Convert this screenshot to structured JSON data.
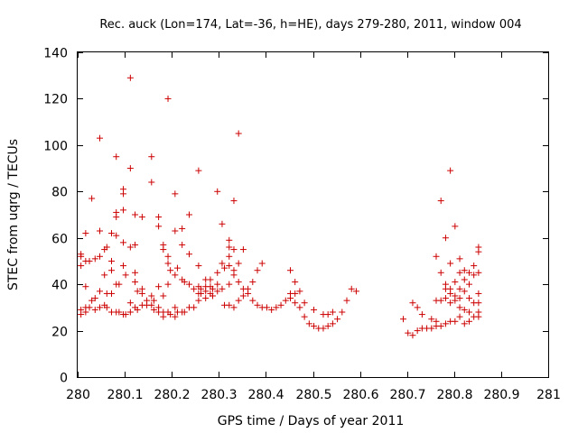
{
  "chart_data": {
    "type": "scatter",
    "title": "Rec. auck (Lon=174, Lat=-36, h=HE), days 279-280, 2011, window 004",
    "xlabel": "GPS time / Days of year 2011",
    "ylabel": "STEC from uqrg / TECUs",
    "xlim": [
      280,
      281
    ],
    "ylim": [
      0,
      140
    ],
    "grid": false,
    "legend": "none",
    "marker": "plus",
    "color": "#cc0000",
    "x_ticks": [
      280,
      280.1,
      280.2,
      280.3,
      280.4,
      280.5,
      280.6,
      280.7,
      280.8,
      280.9,
      281
    ],
    "x_tick_labels": [
      "280",
      "280.1",
      "280.2",
      "280.3",
      "280.4",
      "280.5",
      "280.6",
      "280.7",
      "280.8",
      "280.9",
      "281"
    ],
    "y_ticks": [
      0,
      20,
      40,
      60,
      80,
      100,
      120,
      140
    ],
    "y_tick_labels": [
      "0",
      "20",
      "40",
      "60",
      "80",
      "100",
      "120",
      "140"
    ],
    "series": [
      {
        "name": "STEC",
        "points": [
          [
            280.007,
            52
          ],
          [
            280.007,
            53
          ],
          [
            280.007,
            48
          ],
          [
            280.007,
            29
          ],
          [
            280.007,
            27
          ],
          [
            280.017,
            62
          ],
          [
            280.017,
            50
          ],
          [
            280.017,
            39
          ],
          [
            280.017,
            30
          ],
          [
            280.017,
            28
          ],
          [
            280.025,
            50
          ],
          [
            280.025,
            30
          ],
          [
            280.03,
            77
          ],
          [
            280.03,
            33
          ],
          [
            280.037,
            51
          ],
          [
            280.037,
            34
          ],
          [
            280.037,
            29
          ],
          [
            280.047,
            103
          ],
          [
            280.047,
            63
          ],
          [
            280.047,
            52
          ],
          [
            280.047,
            37
          ],
          [
            280.047,
            30
          ],
          [
            280.057,
            55
          ],
          [
            280.057,
            44
          ],
          [
            280.057,
            31
          ],
          [
            280.062,
            56
          ],
          [
            280.062,
            36
          ],
          [
            280.062,
            30
          ],
          [
            280.072,
            62
          ],
          [
            280.072,
            50
          ],
          [
            280.072,
            46
          ],
          [
            280.072,
            36
          ],
          [
            280.072,
            28
          ],
          [
            280.082,
            95
          ],
          [
            280.082,
            71
          ],
          [
            280.082,
            69
          ],
          [
            280.082,
            61
          ],
          [
            280.082,
            40
          ],
          [
            280.082,
            28
          ],
          [
            280.088,
            40
          ],
          [
            280.088,
            28
          ],
          [
            280.097,
            81
          ],
          [
            280.097,
            79
          ],
          [
            280.097,
            72
          ],
          [
            280.097,
            58
          ],
          [
            280.097,
            48
          ],
          [
            280.097,
            27
          ],
          [
            280.102,
            44
          ],
          [
            280.102,
            27
          ],
          [
            280.112,
            129
          ],
          [
            280.112,
            90
          ],
          [
            280.112,
            56
          ],
          [
            280.112,
            32
          ],
          [
            280.112,
            28
          ],
          [
            280.122,
            70
          ],
          [
            280.122,
            57
          ],
          [
            280.122,
            45
          ],
          [
            280.122,
            41
          ],
          [
            280.122,
            30
          ],
          [
            280.127,
            37
          ],
          [
            280.127,
            29
          ],
          [
            280.137,
            69
          ],
          [
            280.137,
            38
          ],
          [
            280.137,
            36
          ],
          [
            280.137,
            31
          ],
          [
            280.147,
            33
          ],
          [
            280.147,
            31
          ],
          [
            280.157,
            95
          ],
          [
            280.157,
            84
          ],
          [
            280.157,
            35
          ],
          [
            280.157,
            31
          ],
          [
            280.162,
            33
          ],
          [
            280.162,
            29
          ],
          [
            280.172,
            69
          ],
          [
            280.172,
            65
          ],
          [
            280.172,
            39
          ],
          [
            280.172,
            30
          ],
          [
            280.172,
            28
          ],
          [
            280.182,
            57
          ],
          [
            280.182,
            55
          ],
          [
            280.182,
            35
          ],
          [
            280.182,
            28
          ],
          [
            280.182,
            26
          ],
          [
            280.192,
            120
          ],
          [
            280.192,
            52
          ],
          [
            280.192,
            49
          ],
          [
            280.192,
            40
          ],
          [
            280.192,
            28
          ],
          [
            280.197,
            46
          ],
          [
            280.197,
            27
          ],
          [
            280.207,
            79
          ],
          [
            280.207,
            63
          ],
          [
            280.207,
            44
          ],
          [
            280.207,
            30
          ],
          [
            280.207,
            26
          ],
          [
            280.212,
            47
          ],
          [
            280.212,
            28
          ],
          [
            280.222,
            64
          ],
          [
            280.222,
            57
          ],
          [
            280.222,
            42
          ],
          [
            280.222,
            28
          ],
          [
            280.227,
            41
          ],
          [
            280.227,
            28
          ],
          [
            280.237,
            70
          ],
          [
            280.237,
            53
          ],
          [
            280.237,
            40
          ],
          [
            280.237,
            30
          ],
          [
            280.247,
            38
          ],
          [
            280.247,
            30
          ],
          [
            280.257,
            89
          ],
          [
            280.257,
            48
          ],
          [
            280.257,
            39
          ],
          [
            280.257,
            36
          ],
          [
            280.257,
            33
          ],
          [
            280.262,
            38
          ],
          [
            280.262,
            36
          ],
          [
            280.272,
            42
          ],
          [
            280.272,
            39
          ],
          [
            280.272,
            37
          ],
          [
            280.272,
            34
          ],
          [
            280.282,
            42
          ],
          [
            280.282,
            39
          ],
          [
            280.282,
            36
          ],
          [
            280.287,
            38
          ],
          [
            280.287,
            35
          ],
          [
            280.297,
            80
          ],
          [
            280.297,
            45
          ],
          [
            280.297,
            40
          ],
          [
            280.297,
            37
          ],
          [
            280.307,
            66
          ],
          [
            280.307,
            49
          ],
          [
            280.307,
            38
          ],
          [
            280.312,
            47
          ],
          [
            280.312,
            31
          ],
          [
            280.322,
            59
          ],
          [
            280.322,
            56
          ],
          [
            280.322,
            52
          ],
          [
            280.322,
            48
          ],
          [
            280.322,
            40
          ],
          [
            280.322,
            31
          ],
          [
            280.332,
            76
          ],
          [
            280.332,
            55
          ],
          [
            280.332,
            46
          ],
          [
            280.332,
            44
          ],
          [
            280.332,
            30
          ],
          [
            280.342,
            105
          ],
          [
            280.342,
            49
          ],
          [
            280.342,
            41
          ],
          [
            280.342,
            33
          ],
          [
            280.352,
            55
          ],
          [
            280.352,
            38
          ],
          [
            280.352,
            35
          ],
          [
            280.362,
            36
          ],
          [
            280.362,
            38
          ],
          [
            280.372,
            41
          ],
          [
            280.372,
            33
          ],
          [
            280.382,
            46
          ],
          [
            280.382,
            31
          ],
          [
            280.392,
            49
          ],
          [
            280.392,
            30
          ],
          [
            280.402,
            30
          ],
          [
            280.412,
            29
          ],
          [
            280.422,
            30
          ],
          [
            280.432,
            31
          ],
          [
            280.442,
            33
          ],
          [
            280.452,
            46
          ],
          [
            280.452,
            36
          ],
          [
            280.452,
            34
          ],
          [
            280.462,
            41
          ],
          [
            280.462,
            36
          ],
          [
            280.462,
            32
          ],
          [
            280.472,
            37
          ],
          [
            280.472,
            30
          ],
          [
            280.482,
            26
          ],
          [
            280.482,
            32
          ],
          [
            280.492,
            23
          ],
          [
            280.502,
            29
          ],
          [
            280.502,
            22
          ],
          [
            280.512,
            21
          ],
          [
            280.522,
            27
          ],
          [
            280.522,
            21
          ],
          [
            280.532,
            27
          ],
          [
            280.532,
            22
          ],
          [
            280.542,
            28
          ],
          [
            280.542,
            23
          ],
          [
            280.552,
            25
          ],
          [
            280.562,
            28
          ],
          [
            280.572,
            33
          ],
          [
            280.582,
            38
          ],
          [
            280.592,
            37
          ],
          [
            280.692,
            25
          ],
          [
            280.702,
            19
          ],
          [
            280.712,
            32
          ],
          [
            280.712,
            18
          ],
          [
            280.722,
            30
          ],
          [
            280.722,
            20
          ],
          [
            280.732,
            27
          ],
          [
            280.732,
            21
          ],
          [
            280.742,
            21
          ],
          [
            280.752,
            25
          ],
          [
            280.752,
            21
          ],
          [
            280.762,
            52
          ],
          [
            280.762,
            33
          ],
          [
            280.762,
            24
          ],
          [
            280.762,
            22
          ],
          [
            280.772,
            76
          ],
          [
            280.772,
            45
          ],
          [
            280.772,
            33
          ],
          [
            280.772,
            22
          ],
          [
            280.782,
            60
          ],
          [
            280.782,
            40
          ],
          [
            280.782,
            38
          ],
          [
            280.782,
            34
          ],
          [
            280.782,
            23
          ],
          [
            280.792,
            89
          ],
          [
            280.792,
            49
          ],
          [
            280.792,
            38
          ],
          [
            280.792,
            36
          ],
          [
            280.792,
            32
          ],
          [
            280.792,
            24
          ],
          [
            280.802,
            65
          ],
          [
            280.802,
            41
          ],
          [
            280.802,
            35
          ],
          [
            280.802,
            33
          ],
          [
            280.802,
            24
          ],
          [
            280.812,
            51
          ],
          [
            280.812,
            45
          ],
          [
            280.812,
            38
          ],
          [
            280.812,
            34
          ],
          [
            280.812,
            30
          ],
          [
            280.812,
            26
          ],
          [
            280.822,
            46
          ],
          [
            280.822,
            42
          ],
          [
            280.822,
            37
          ],
          [
            280.822,
            29
          ],
          [
            280.822,
            23
          ],
          [
            280.832,
            45
          ],
          [
            280.832,
            40
          ],
          [
            280.832,
            34
          ],
          [
            280.832,
            28
          ],
          [
            280.832,
            24
          ],
          [
            280.842,
            48
          ],
          [
            280.842,
            44
          ],
          [
            280.842,
            32
          ],
          [
            280.842,
            26
          ],
          [
            280.852,
            56
          ],
          [
            280.852,
            54
          ],
          [
            280.852,
            45
          ],
          [
            280.852,
            36
          ],
          [
            280.852,
            32
          ],
          [
            280.852,
            28
          ],
          [
            280.852,
            26
          ]
        ]
      }
    ]
  }
}
